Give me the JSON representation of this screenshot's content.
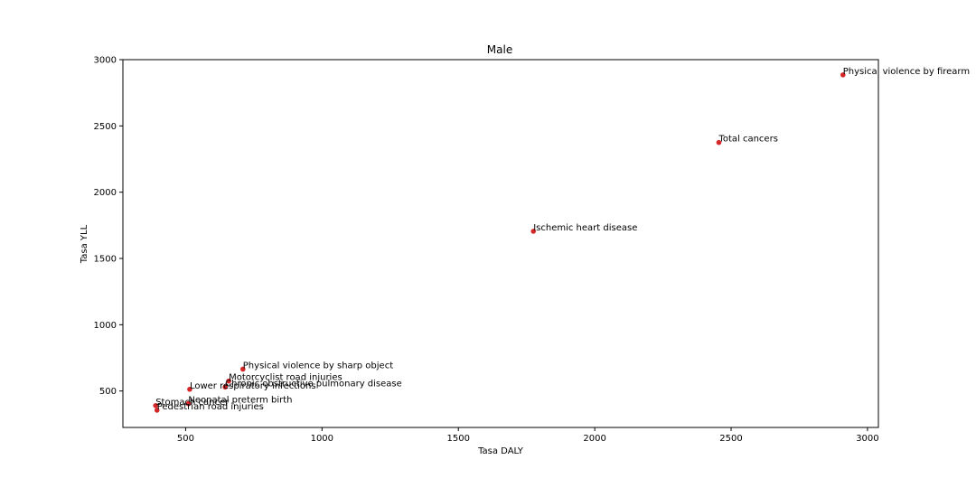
{
  "chart_data": {
    "type": "scatter",
    "title": "Male",
    "xlabel": "Tasa DALY",
    "ylabel": "Tasa YLL",
    "xlim": [
      270,
      3040
    ],
    "ylim": [
      225,
      3000
    ],
    "xticks": [
      500,
      1000,
      1500,
      2000,
      2500,
      3000
    ],
    "yticks": [
      500,
      1000,
      1500,
      2000,
      2500,
      3000
    ],
    "grid": false,
    "marker_color": "#d62728",
    "points": [
      {
        "label": "Physical violence by firearm",
        "x": 2910,
        "y": 2885
      },
      {
        "label": "Total cancers",
        "x": 2455,
        "y": 2375
      },
      {
        "label": "Ischemic heart disease",
        "x": 1775,
        "y": 1705
      },
      {
        "label": "Physical violence by sharp object",
        "x": 710,
        "y": 665
      },
      {
        "label": "Motorcyclist road injuries",
        "x": 658,
        "y": 575
      },
      {
        "label": "Chronic obstructive pulmonary disease",
        "x": 645,
        "y": 530
      },
      {
        "label": "Lower respiratory infections",
        "x": 515,
        "y": 513
      },
      {
        "label": "Neonatal preterm birth",
        "x": 510,
        "y": 405
      },
      {
        "label": "Stomach cancer",
        "x": 390,
        "y": 390
      },
      {
        "label": "Pedestrian road injuries",
        "x": 395,
        "y": 355
      }
    ]
  }
}
